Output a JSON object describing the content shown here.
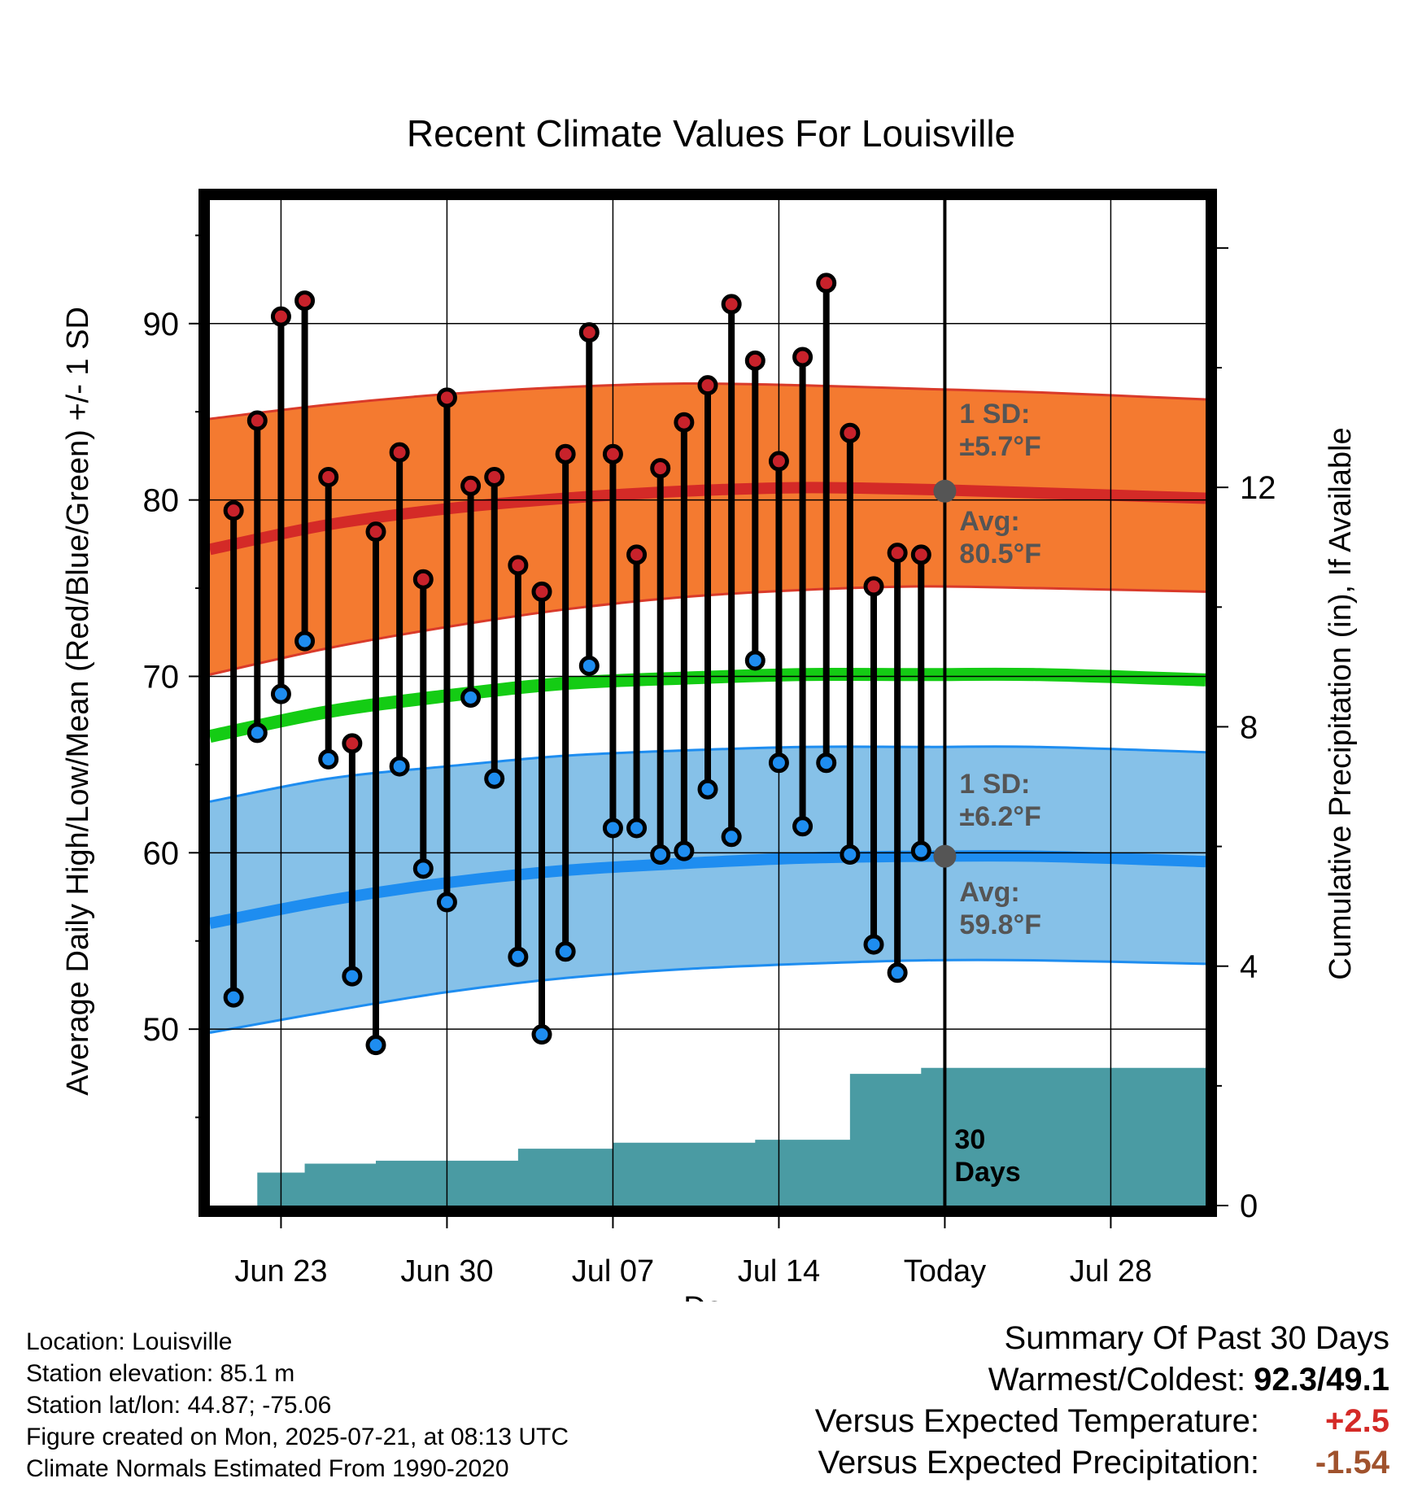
{
  "chart_data": {
    "type": "line",
    "title": "Recent Climate Values For Louisville",
    "xlabel": "Day",
    "ylabel": "Average Daily High/Low/Mean (Red/Blue/Green) +/- 1 SD",
    "y2label": "Cumulative Precipitation (in), If Available",
    "xlim": [
      "2025-06-20",
      "2025-08-01"
    ],
    "x_ticks": [
      {
        "date": "2025-06-23",
        "label": "Jun 23"
      },
      {
        "date": "2025-06-30",
        "label": "Jun 30"
      },
      {
        "date": "2025-07-07",
        "label": "Jul 07"
      },
      {
        "date": "2025-07-14",
        "label": "Jul 14"
      },
      {
        "date": "2025-07-21",
        "label": "Today"
      },
      {
        "date": "2025-07-28",
        "label": "Jul 28"
      }
    ],
    "ylim": [
      40,
      97
    ],
    "y_ticks": [
      50,
      60,
      70,
      80,
      90
    ],
    "y2lim": [
      0,
      16.8
    ],
    "y2_ticks": [
      0,
      4,
      8,
      12
    ],
    "grid": true,
    "today": "2025-07-21",
    "normals": {
      "x": [
        "2025-06-20",
        "2025-06-25",
        "2025-06-30",
        "2025-07-05",
        "2025-07-10",
        "2025-07-15",
        "2025-07-20",
        "2025-07-25",
        "2025-08-01"
      ],
      "high_avg": [
        77.2,
        78.6,
        79.5,
        80.1,
        80.5,
        80.7,
        80.6,
        80.4,
        80.1
      ],
      "high_upper": [
        84.6,
        85.4,
        86.0,
        86.4,
        86.6,
        86.5,
        86.3,
        86.1,
        85.7
      ],
      "high_lower": [
        70.1,
        71.6,
        72.8,
        73.8,
        74.5,
        74.9,
        75.1,
        75.0,
        74.8
      ],
      "mean_avg": [
        66.6,
        68.0,
        68.9,
        69.6,
        69.9,
        70.1,
        70.1,
        70.1,
        69.8
      ],
      "low_avg": [
        56.0,
        57.3,
        58.3,
        59.0,
        59.4,
        59.7,
        59.8,
        59.8,
        59.5
      ],
      "low_upper": [
        62.9,
        64.2,
        64.9,
        65.5,
        65.8,
        66.0,
        66.0,
        66.0,
        65.7
      ],
      "low_lower": [
        49.8,
        51.0,
        52.1,
        52.9,
        53.4,
        53.7,
        53.9,
        53.9,
        53.7
      ]
    },
    "series": [
      {
        "name": "High",
        "x": [
          "2025-06-21",
          "2025-06-22",
          "2025-06-23",
          "2025-06-24",
          "2025-06-25",
          "2025-06-26",
          "2025-06-27",
          "2025-06-28",
          "2025-06-29",
          "2025-06-30",
          "2025-07-01",
          "2025-07-02",
          "2025-07-03",
          "2025-07-04",
          "2025-07-05",
          "2025-07-06",
          "2025-07-07",
          "2025-07-08",
          "2025-07-09",
          "2025-07-10",
          "2025-07-11",
          "2025-07-12",
          "2025-07-13",
          "2025-07-14",
          "2025-07-15",
          "2025-07-16",
          "2025-07-17",
          "2025-07-18",
          "2025-07-19",
          "2025-07-20"
        ],
        "values": [
          79.4,
          84.5,
          90.4,
          91.3,
          81.3,
          66.2,
          78.2,
          82.7,
          75.5,
          85.8,
          80.8,
          81.3,
          76.3,
          74.8,
          82.6,
          89.5,
          82.6,
          76.9,
          81.8,
          84.4,
          86.5,
          91.1,
          87.9,
          82.2,
          88.1,
          92.3,
          83.8,
          75.1,
          77.0,
          76.9
        ]
      },
      {
        "name": "Low",
        "x": [
          "2025-06-21",
          "2025-06-22",
          "2025-06-23",
          "2025-06-24",
          "2025-06-25",
          "2025-06-26",
          "2025-06-27",
          "2025-06-28",
          "2025-06-29",
          "2025-06-30",
          "2025-07-01",
          "2025-07-02",
          "2025-07-03",
          "2025-07-04",
          "2025-07-05",
          "2025-07-06",
          "2025-07-07",
          "2025-07-08",
          "2025-07-09",
          "2025-07-10",
          "2025-07-11",
          "2025-07-12",
          "2025-07-13",
          "2025-07-14",
          "2025-07-15",
          "2025-07-16",
          "2025-07-17",
          "2025-07-18",
          "2025-07-19",
          "2025-07-20"
        ],
        "values": [
          51.8,
          66.8,
          69.0,
          72.0,
          65.3,
          53.0,
          49.1,
          64.9,
          59.1,
          57.2,
          68.8,
          64.2,
          54.1,
          49.7,
          54.4,
          70.6,
          61.4,
          61.4,
          59.9,
          60.1,
          63.6,
          60.9,
          70.9,
          65.1,
          61.5,
          65.1,
          59.9,
          54.8,
          53.2,
          60.1
        ]
      },
      {
        "name": "Cumulative Precipitation",
        "x": [
          "2025-06-21",
          "2025-06-22",
          "2025-06-23",
          "2025-06-24",
          "2025-06-25",
          "2025-06-26",
          "2025-06-27",
          "2025-06-28",
          "2025-06-29",
          "2025-06-30",
          "2025-07-01",
          "2025-07-02",
          "2025-07-03",
          "2025-07-04",
          "2025-07-05",
          "2025-07-06",
          "2025-07-07",
          "2025-07-08",
          "2025-07-09",
          "2025-07-10",
          "2025-07-11",
          "2025-07-12",
          "2025-07-13",
          "2025-07-14",
          "2025-07-15",
          "2025-07-16",
          "2025-07-17",
          "2025-07-18",
          "2025-07-19",
          "2025-07-20",
          "2025-07-21",
          "2025-08-01"
        ],
        "values": [
          0.0,
          0.55,
          0.55,
          0.7,
          0.7,
          0.7,
          0.75,
          0.75,
          0.75,
          0.75,
          0.75,
          0.75,
          0.95,
          0.95,
          0.95,
          0.95,
          1.05,
          1.05,
          1.05,
          1.05,
          1.05,
          1.05,
          1.1,
          1.1,
          1.1,
          1.1,
          2.2,
          2.2,
          2.2,
          2.3,
          2.3,
          2.3
        ]
      }
    ],
    "annotations": {
      "high_sd": [
        "1 SD:",
        "±5.7°F"
      ],
      "high_avg": [
        "Avg:",
        "80.5°F"
      ],
      "low_sd": [
        "1 SD:",
        "±6.2°F"
      ],
      "low_avg": [
        "Avg:",
        "59.8°F"
      ],
      "precip_window": [
        "30",
        "Days"
      ],
      "today_high_avg": 80.5,
      "today_low_avg": 59.8
    }
  },
  "colors": {
    "high_band": "#F47A30",
    "high_line": "#D42A27",
    "high_band_edge": "#D93A2A",
    "low_band": "#86C1E8",
    "low_line": "#1E8DF0",
    "mean_line": "#14CC14",
    "precip": "#4A9BA3",
    "annotation": "#555555",
    "high_dot": "#C8222B",
    "low_dot": "#1E8DF0",
    "positive": "#D42A27",
    "negative": "#A0522D"
  },
  "footer": {
    "location": "Location: Louisville",
    "elevation": "Station elevation: 85.1 m",
    "latlon": "Station lat/lon: 44.87; -75.06",
    "created": "Figure created on Mon, 2025-07-21, at 08:13 UTC",
    "normals": "Climate Normals Estimated From 1990-2020"
  },
  "summary": {
    "title": "Summary Of Past 30 Days",
    "warm_cold_label": "Warmest/Coldest:",
    "warm_cold_value": "92.3/49.1",
    "temp_label": "Versus Expected Temperature:",
    "temp_value": "+2.5",
    "precip_label": "Versus Expected Precipitation:",
    "precip_value": "-1.54"
  }
}
